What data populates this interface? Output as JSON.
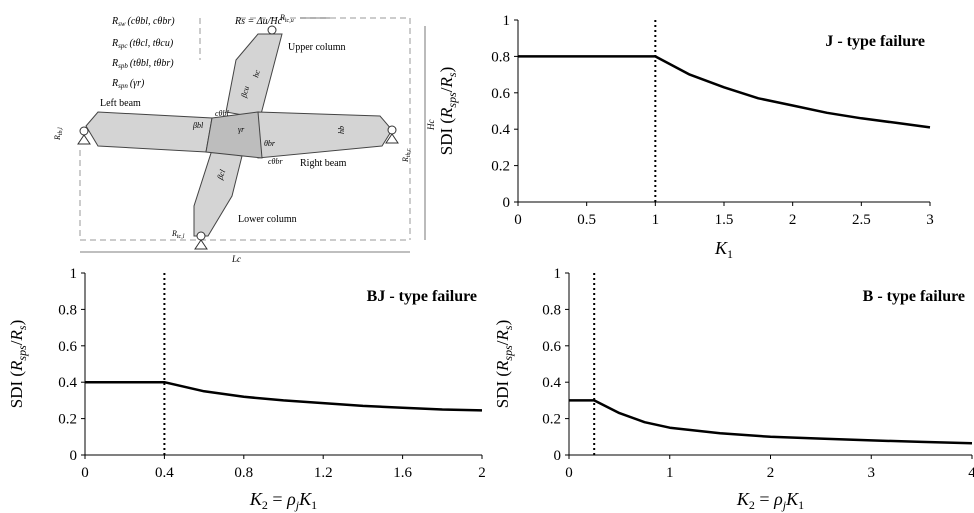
{
  "diagram": {
    "labels": {
      "r_sw": "R",
      "r_sw_sub": "sw",
      "r_sw_args": "(cθbl, cθbr)",
      "r_spc": "R",
      "r_spc_sub": "spc",
      "r_spc_args": "(tθcl, tθcu)",
      "r_spb": "R",
      "r_spb_sub": "spb",
      "r_spb_args": "(tθbl, tθbr)",
      "r_spn": "R",
      "r_spn_sub": "spn",
      "r_spn_args": "(γr)",
      "rs_formula": "Rs = Δu/Hc",
      "upper_column": "Upper column",
      "lower_column": "Lower column",
      "left_beam": "Left beam",
      "right_beam": "Right beam",
      "r_cu": "R",
      "r_cu_sub": "tc,u",
      "r_cl": "R",
      "r_cl_sub": "tc,l",
      "r_bl": "R",
      "r_bl_sub": "tb,l",
      "r_br": "R",
      "r_br_sub": "tb,r",
      "theta_bl": "cθbl",
      "theta_br": "cθbr",
      "theta_cu": "βcu",
      "theta_cl": "βcl",
      "theta_bl2": "βbl",
      "theta_br2": "θbr",
      "gamma": "γr",
      "lc": "Lc",
      "hc": "Hc",
      "hb": "hb",
      "hc_in": "hc"
    }
  },
  "chart_data": [
    {
      "type": "line",
      "annotation": "J - type failure",
      "xlabel": "K",
      "xlabel_sub": "1",
      "ylabel": "SDI (R",
      "ylabel_sub": "sps",
      "ylabel_tail": "/R",
      "ylabel_sub2": "s",
      "ylabel_end": ")",
      "xlim": [
        0,
        3
      ],
      "ylim": [
        0,
        1
      ],
      "xticks": [
        "0",
        "0.5",
        "1",
        "1.5",
        "2",
        "2.5",
        "3"
      ],
      "yticks": [
        "0",
        "0.2",
        "0.4",
        "0.6",
        "0.8",
        "1"
      ],
      "x": [
        0,
        1,
        1.25,
        1.5,
        1.75,
        2,
        2.25,
        2.5,
        2.75,
        3
      ],
      "y": [
        0.8,
        0.8,
        0.7,
        0.63,
        0.57,
        0.53,
        0.49,
        0.46,
        0.435,
        0.41
      ],
      "vline": 1
    },
    {
      "type": "line",
      "annotation": "BJ - type failure",
      "xlabel": "K",
      "xlabel_sub": "2",
      "xlabel_mid": " = ρ",
      "xlabel_sub2": "j",
      "xlabel_tail": "K",
      "xlabel_sub3": "1",
      "ylabel": "SDI (R",
      "ylabel_sub": "sps",
      "ylabel_tail": "/R",
      "ylabel_sub2": "s",
      "ylabel_end": ")",
      "xlim": [
        0,
        2
      ],
      "ylim": [
        0,
        1
      ],
      "xticks": [
        "0",
        "0.4",
        "0.8",
        "1.2",
        "1.6",
        "2"
      ],
      "yticks": [
        "0",
        "0.2",
        "0.4",
        "0.6",
        "0.8",
        "1"
      ],
      "x": [
        0,
        0.4,
        0.6,
        0.8,
        1.0,
        1.2,
        1.4,
        1.6,
        1.8,
        2.0
      ],
      "y": [
        0.4,
        0.4,
        0.35,
        0.32,
        0.3,
        0.285,
        0.27,
        0.26,
        0.25,
        0.245
      ],
      "vline": 0.4
    },
    {
      "type": "line",
      "annotation": "B - type failure",
      "xlabel": "K",
      "xlabel_sub": "2",
      "xlabel_mid": " = ρ",
      "xlabel_sub2": "j",
      "xlabel_tail": "K",
      "xlabel_sub3": "1",
      "ylabel": "SDI (R",
      "ylabel_sub": "sps",
      "ylabel_tail": "/R",
      "ylabel_sub2": "s",
      "ylabel_end": ")",
      "xlim": [
        0,
        4
      ],
      "ylim": [
        0,
        1
      ],
      "xticks": [
        "0",
        "1",
        "2",
        "3",
        "4"
      ],
      "yticks": [
        "0",
        "0.2",
        "0.4",
        "0.6",
        "0.8",
        "1"
      ],
      "x": [
        0,
        0.25,
        0.5,
        0.75,
        1,
        1.5,
        2,
        2.5,
        3,
        3.5,
        4
      ],
      "y": [
        0.3,
        0.3,
        0.23,
        0.18,
        0.15,
        0.12,
        0.1,
        0.09,
        0.08,
        0.072,
        0.065
      ],
      "vline": 0.25
    }
  ]
}
